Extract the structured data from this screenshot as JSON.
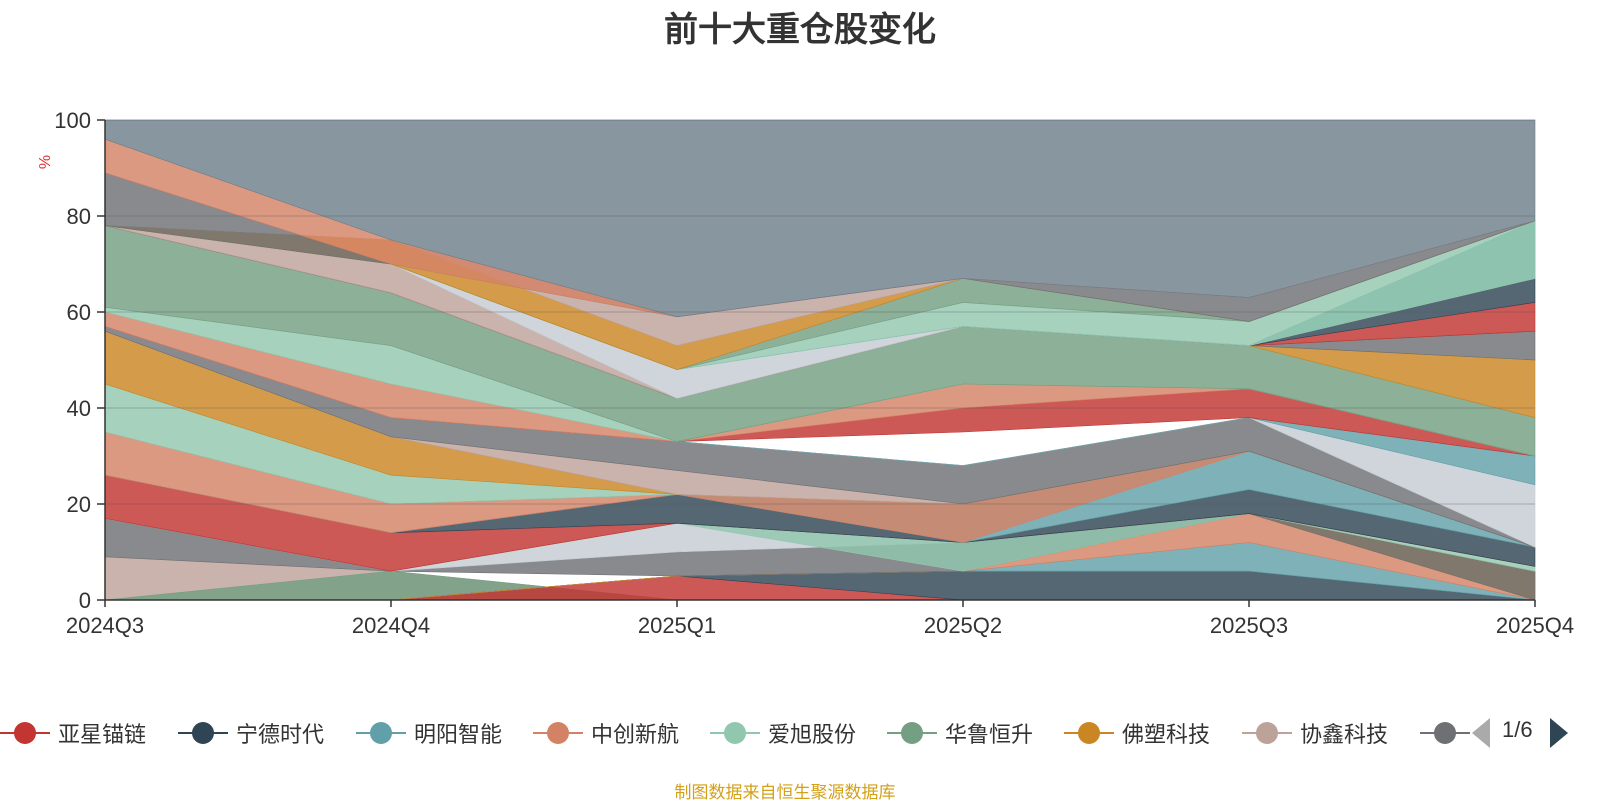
{
  "title": "前十大重仓股变化",
  "source_note": "制图数据来自恒生聚源数据库",
  "pager": {
    "text": "1/6"
  },
  "colors": {
    "axis": "#333333",
    "grid": "#555555",
    "unit_label": "#e03030",
    "source_note": "#d4a017"
  },
  "legend": [
    {
      "label": "亚星锚链",
      "color": "#c23531"
    },
    {
      "label": "宁德时代",
      "color": "#2f4554"
    },
    {
      "label": "明阳智能",
      "color": "#61a0a8"
    },
    {
      "label": "中创新航",
      "color": "#d48265"
    },
    {
      "label": "爱旭股份",
      "color": "#91c7ae"
    },
    {
      "label": "华鲁恒升",
      "color": "#749f83"
    },
    {
      "label": "佛塑科技",
      "color": "#ca8622"
    },
    {
      "label": "协鑫科技",
      "color": "#bda29a"
    },
    {
      "label": "(",
      "color": "#6e7074"
    }
  ],
  "chart_data": {
    "type": "area",
    "title": "前十大重仓股变化",
    "ylabel": "%",
    "ylim": [
      0,
      100
    ],
    "yticks": [
      0,
      20,
      40,
      60,
      80,
      100
    ],
    "categories": [
      "2024Q3",
      "2024Q4",
      "2025Q1",
      "2025Q2",
      "2025Q3",
      "2025Q4"
    ],
    "grid": true,
    "stacked": true,
    "bands": [
      {
        "color": "#bda29a",
        "lower": [
          0,
          0,
          0,
          0,
          0,
          0
        ],
        "upper": [
          9,
          6,
          0,
          0,
          0,
          0
        ]
      },
      {
        "color": "#749f83",
        "lower": [
          0,
          0,
          0,
          0,
          0,
          0
        ],
        "upper": [
          0,
          6,
          0,
          0,
          0,
          0
        ]
      },
      {
        "color": "#c23531",
        "lower": [
          0,
          0,
          0,
          0,
          0,
          0
        ],
        "upper": [
          0,
          0,
          5,
          0,
          0,
          0
        ]
      },
      {
        "color": "#2f4554",
        "lower": [
          0,
          0,
          5,
          0,
          0,
          0
        ],
        "upper": [
          0,
          0,
          5,
          6,
          6,
          0
        ]
      },
      {
        "color": "#61a0a8",
        "lower": [
          0,
          0,
          5,
          6,
          6,
          0
        ],
        "upper": [
          0,
          0,
          5,
          6,
          12,
          0
        ]
      },
      {
        "color": "#d48265",
        "lower": [
          0,
          0,
          5,
          6,
          12,
          0
        ],
        "upper": [
          0,
          0,
          5,
          6,
          18,
          0
        ]
      },
      {
        "color": "#ca8622",
        "lower": [
          0,
          0,
          5,
          6,
          18,
          0
        ],
        "upper": [
          0,
          0,
          5,
          6,
          18,
          6
        ]
      },
      {
        "color": "#6e7074",
        "lower": [
          9,
          6,
          5,
          6,
          18,
          0
        ],
        "upper": [
          17,
          6,
          10,
          12,
          18,
          6
        ]
      },
      {
        "color": "#c4ccd3",
        "lower": [
          17,
          6,
          10,
          12,
          18,
          6
        ],
        "upper": [
          17,
          6,
          16,
          12,
          18,
          6
        ]
      },
      {
        "color": "#91c7ae",
        "lower": [
          17,
          6,
          16,
          6,
          18,
          6
        ],
        "upper": [
          17,
          6,
          16,
          12,
          18,
          7
        ]
      },
      {
        "color": "#c23531",
        "lower": [
          17,
          6,
          16,
          12,
          18,
          7
        ],
        "upper": [
          26,
          14,
          16,
          12,
          18,
          7
        ]
      },
      {
        "color": "#2f4554",
        "lower": [
          26,
          14,
          16,
          12,
          18,
          7
        ],
        "upper": [
          26,
          14,
          22,
          12,
          23,
          11
        ]
      },
      {
        "color": "#61a0a8",
        "lower": [
          26,
          14,
          22,
          12,
          23,
          11
        ],
        "upper": [
          26,
          14,
          22,
          20,
          31,
          11
        ]
      },
      {
        "color": "#d48265",
        "lower": [
          26,
          14,
          22,
          12,
          31,
          11
        ],
        "upper": [
          35,
          20,
          22,
          20,
          31,
          11
        ]
      },
      {
        "color": "#91c7ae",
        "lower": [
          35,
          20,
          22,
          20,
          31,
          11
        ],
        "upper": [
          45,
          26,
          22,
          20,
          31,
          11
        ]
      },
      {
        "color": "#ca8622",
        "lower": [
          45,
          26,
          22,
          20,
          31,
          11
        ],
        "upper": [
          56,
          34,
          22,
          20,
          31,
          11
        ]
      },
      {
        "color": "#bda29a",
        "lower": [
          56,
          34,
          22,
          20,
          31,
          11
        ],
        "upper": [
          56,
          34,
          27,
          20,
          31,
          11
        ]
      },
      {
        "color": "#6e7074",
        "lower": [
          56,
          34,
          27,
          20,
          31,
          11
        ],
        "upper": [
          57,
          38,
          33,
          28,
          38,
          11
        ]
      },
      {
        "color": "#c4ccd3",
        "lower": [
          57,
          38,
          33,
          28,
          38,
          11
        ],
        "upper": [
          57,
          38,
          33,
          28,
          38,
          24
        ]
      },
      {
        "color": "#61a0a8",
        "lower": [
          57,
          38,
          33,
          28,
          38,
          24
        ],
        "upper": [
          57,
          38,
          33,
          28,
          38,
          30
        ]
      },
      {
        "color": "#c23531",
        "lower": [
          57,
          38,
          33,
          35,
          38,
          30
        ],
        "upper": [
          57,
          38,
          33,
          40,
          44,
          30
        ]
      },
      {
        "color": "#d48265",
        "lower": [
          57,
          38,
          33,
          40,
          44,
          30
        ],
        "upper": [
          60,
          45,
          33,
          45,
          44,
          30
        ]
      },
      {
        "color": "#91c7ae",
        "lower": [
          60,
          45,
          33,
          45,
          44,
          30
        ],
        "upper": [
          61,
          53,
          33,
          45,
          44,
          30
        ]
      },
      {
        "color": "#749f83",
        "lower": [
          61,
          53,
          33,
          45,
          44,
          30
        ],
        "upper": [
          78,
          64,
          42,
          57,
          53,
          38
        ]
      },
      {
        "color": "#ca8622",
        "lower": [
          78,
          64,
          42,
          57,
          53,
          38
        ],
        "upper": [
          78,
          64,
          42,
          57,
          53,
          50
        ]
      },
      {
        "color": "#6e7074",
        "lower": [
          78,
          64,
          42,
          57,
          53,
          50
        ],
        "upper": [
          78,
          64,
          42,
          57,
          53,
          56
        ]
      },
      {
        "color": "#c23531",
        "lower": [
          78,
          64,
          42,
          57,
          53,
          56
        ],
        "upper": [
          78,
          64,
          42,
          57,
          53,
          62
        ]
      },
      {
        "color": "#2f4554",
        "lower": [
          78,
          64,
          42,
          57,
          53,
          62
        ],
        "upper": [
          78,
          64,
          42,
          57,
          53,
          67
        ]
      },
      {
        "color": "#bda29a",
        "lower": [
          78,
          64,
          42,
          57,
          53,
          67
        ],
        "upper": [
          78,
          70,
          42,
          57,
          53,
          67
        ]
      },
      {
        "color": "#c4ccd3",
        "lower": [
          78,
          70,
          42,
          57,
          53,
          67
        ],
        "upper": [
          78,
          70,
          48,
          57,
          53,
          67
        ]
      },
      {
        "color": "#61a0a8",
        "lower": [
          78,
          70,
          48,
          57,
          53,
          67
        ],
        "upper": [
          78,
          70,
          48,
          57,
          53,
          79
        ]
      },
      {
        "color": "#91c7ae",
        "lower": [
          78,
          70,
          48,
          57,
          53,
          67
        ],
        "upper": [
          78,
          70,
          48,
          62,
          58,
          79
        ]
      },
      {
        "color": "#749f83",
        "lower": [
          78,
          70,
          48,
          62,
          58,
          79
        ],
        "upper": [
          78,
          70,
          48,
          67,
          58,
          79
        ]
      },
      {
        "color": "#ca8622",
        "lower": [
          78,
          70,
          48,
          67,
          58,
          79
        ],
        "upper": [
          78,
          75,
          53,
          67,
          58,
          79
        ]
      },
      {
        "color": "#bda29a",
        "lower": [
          78,
          75,
          53,
          67,
          58,
          79
        ],
        "upper": [
          78,
          75,
          59,
          67,
          58,
          79
        ]
      },
      {
        "color": "#6e7074",
        "lower": [
          78,
          70,
          59,
          67,
          58,
          79
        ],
        "upper": [
          89,
          70,
          59,
          67,
          63,
          79
        ]
      },
      {
        "color": "#d48265",
        "lower": [
          89,
          70,
          59,
          67,
          63,
          79
        ],
        "upper": [
          96,
          75,
          59,
          67,
          63,
          79
        ]
      },
      {
        "color": "#6e7f8a",
        "lower": [
          96,
          75,
          59,
          67,
          63,
          79
        ],
        "upper": [
          100,
          100,
          100,
          100,
          100,
          100
        ]
      }
    ]
  }
}
